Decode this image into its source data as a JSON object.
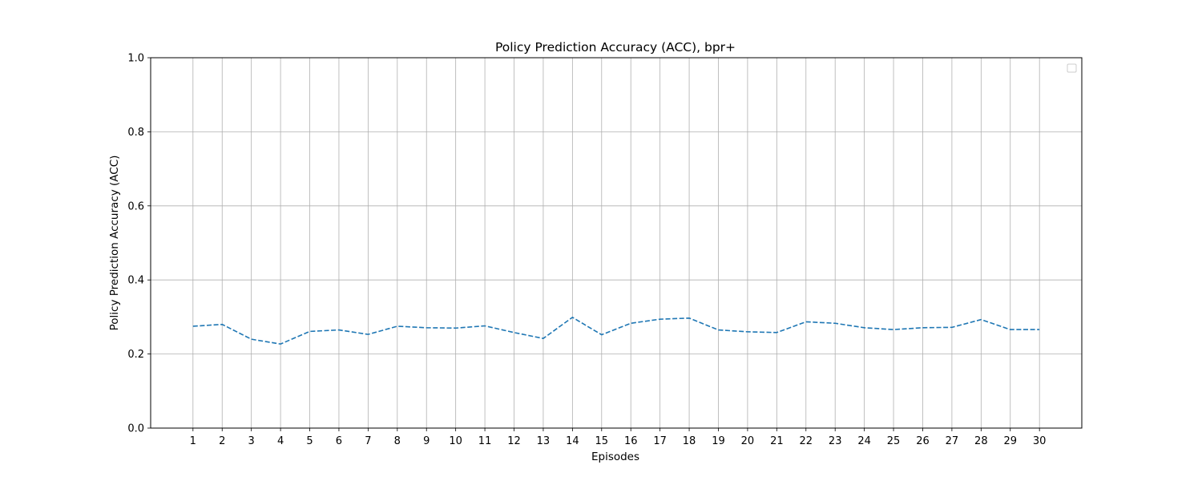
{
  "chart_data": {
    "type": "line",
    "title": "Policy Prediction Accuracy (ACC), bpr+",
    "xlabel": "Episodes",
    "ylabel": "Policy Prediction Accuracy (ACC)",
    "x": [
      1,
      2,
      3,
      4,
      5,
      6,
      7,
      8,
      9,
      10,
      11,
      12,
      13,
      14,
      15,
      16,
      17,
      18,
      19,
      20,
      21,
      22,
      23,
      24,
      25,
      26,
      27,
      28,
      29,
      30
    ],
    "xlim": [
      -0.45,
      31.45
    ],
    "ylim": [
      0.0,
      1.0
    ],
    "yticks": [
      0.0,
      0.2,
      0.4,
      0.6,
      0.8,
      1.0
    ],
    "ytick_labels": [
      "0.0",
      "0.2",
      "0.4",
      "0.6",
      "0.8",
      "1.0"
    ],
    "grid": true,
    "legend": {
      "placement": "top-right",
      "entries": []
    },
    "series": [
      {
        "values": [
          0.275,
          0.28,
          0.24,
          0.227,
          0.261,
          0.265,
          0.253,
          0.275,
          0.271,
          0.27,
          0.276,
          0.258,
          0.242,
          0.299,
          0.252,
          0.283,
          0.294,
          0.297,
          0.265,
          0.26,
          0.258,
          0.287,
          0.283,
          0.271,
          0.266,
          0.271,
          0.272,
          0.293,
          0.266,
          0.266
        ],
        "color": "#1f77b4",
        "line_style": "dashed"
      }
    ]
  }
}
